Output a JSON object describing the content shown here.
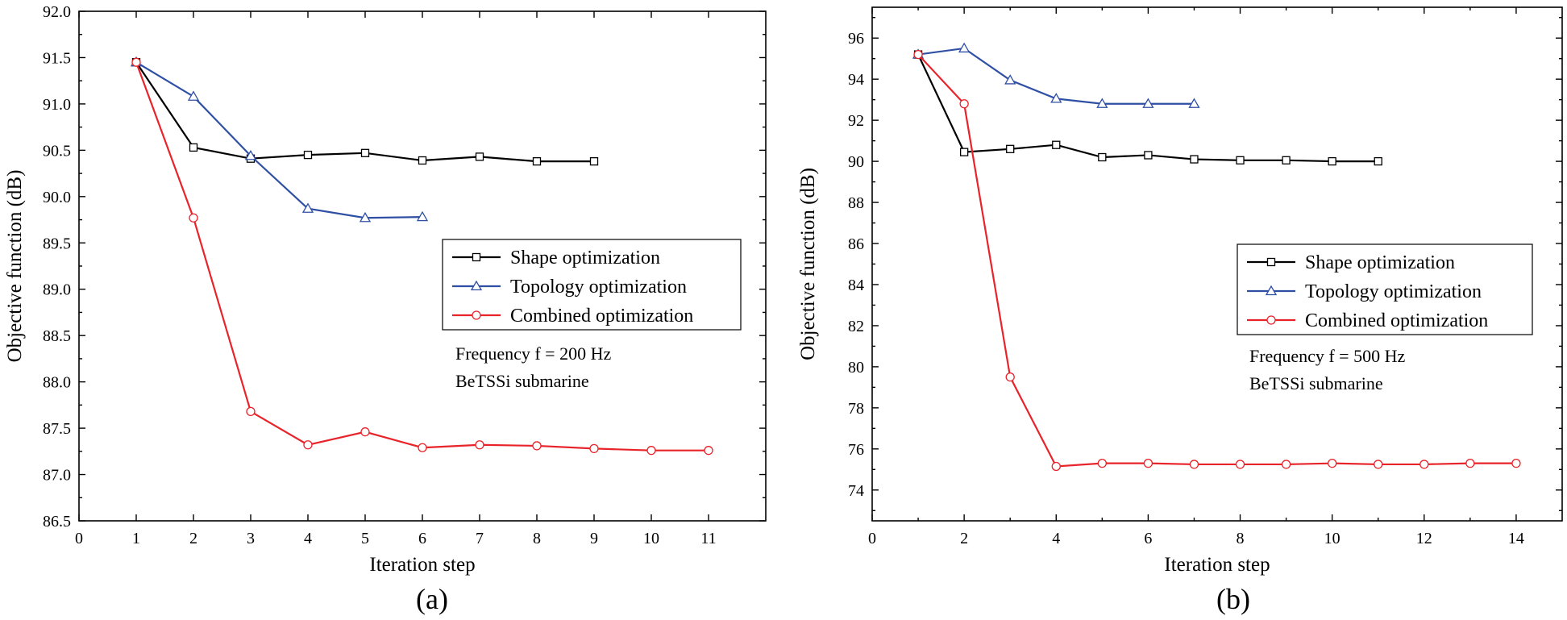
{
  "chart_data": [
    {
      "type": "line",
      "subfigure_label": "(a)",
      "xlabel": "Iteration step",
      "ylabel": "Objective function (dB)",
      "xlim": [
        0,
        12
      ],
      "ylim": [
        86.5,
        92.0
      ],
      "xticks": [
        "0",
        "1",
        "2",
        "3",
        "4",
        "5",
        "6",
        "7",
        "8",
        "9",
        "10",
        "11"
      ],
      "yticks": [
        "86.5",
        "87.0",
        "87.5",
        "88.0",
        "88.5",
        "89.0",
        "89.5",
        "90.0",
        "90.5",
        "91.0",
        "91.5",
        "92.0"
      ],
      "legend_position": "center-right",
      "annotations": [
        "Frequency f = 200 Hz",
        "BeTSSi submarine"
      ],
      "series": [
        {
          "name": "Shape optimization",
          "color": "#000000",
          "marker": "square",
          "x": [
            1,
            2,
            3,
            4,
            5,
            6,
            7,
            8,
            9
          ],
          "y": [
            91.45,
            90.53,
            90.41,
            90.45,
            90.47,
            90.39,
            90.43,
            90.38,
            90.38
          ]
        },
        {
          "name": "Topology optimization",
          "color": "#2e4fa3",
          "marker": "triangle",
          "x": [
            1,
            2,
            3,
            4,
            5,
            6
          ],
          "y": [
            91.45,
            91.08,
            90.44,
            89.87,
            89.77,
            89.78
          ]
        },
        {
          "name": "Combined optimization",
          "color": "#e8232a",
          "marker": "circle",
          "x": [
            1,
            2,
            3,
            4,
            5,
            6,
            7,
            8,
            9,
            10,
            11
          ],
          "y": [
            91.45,
            89.77,
            87.68,
            87.32,
            87.46,
            87.29,
            87.32,
            87.31,
            87.28,
            87.26,
            87.26
          ]
        }
      ]
    },
    {
      "type": "line",
      "subfigure_label": "(b)",
      "xlabel": "Iteration step",
      "ylabel": "Objective function (dB)",
      "xlim": [
        0,
        15
      ],
      "ylim": [
        72.5,
        97.5
      ],
      "xticks": [
        "0",
        "2",
        "4",
        "6",
        "8",
        "10",
        "12",
        "14"
      ],
      "yticks": [
        "74",
        "76",
        "78",
        "80",
        "82",
        "84",
        "86",
        "88",
        "90",
        "92",
        "94",
        "96"
      ],
      "legend_position": "center-right",
      "annotations": [
        "Frequency f = 500 Hz",
        "BeTSSi submarine"
      ],
      "series": [
        {
          "name": "Shape optimization",
          "color": "#000000",
          "marker": "square",
          "x": [
            1,
            2,
            3,
            4,
            5,
            6,
            7,
            8,
            9,
            10,
            11
          ],
          "y": [
            95.2,
            90.45,
            90.6,
            90.8,
            90.2,
            90.3,
            90.1,
            90.05,
            90.05,
            90.0,
            90.0
          ]
        },
        {
          "name": "Topology optimization",
          "color": "#2e4fa3",
          "marker": "triangle",
          "x": [
            1,
            2,
            3,
            4,
            5,
            6,
            7
          ],
          "y": [
            95.2,
            95.5,
            93.95,
            93.05,
            92.8,
            92.8,
            92.8
          ]
        },
        {
          "name": "Combined optimization",
          "color": "#e8232a",
          "marker": "circle",
          "x": [
            1,
            2,
            3,
            4,
            5,
            6,
            7,
            8,
            9,
            10,
            11,
            12,
            13,
            14
          ],
          "y": [
            95.2,
            92.8,
            79.5,
            75.15,
            75.3,
            75.3,
            75.25,
            75.25,
            75.25,
            75.3,
            75.25,
            75.25,
            75.3,
            75.3
          ]
        }
      ]
    }
  ]
}
